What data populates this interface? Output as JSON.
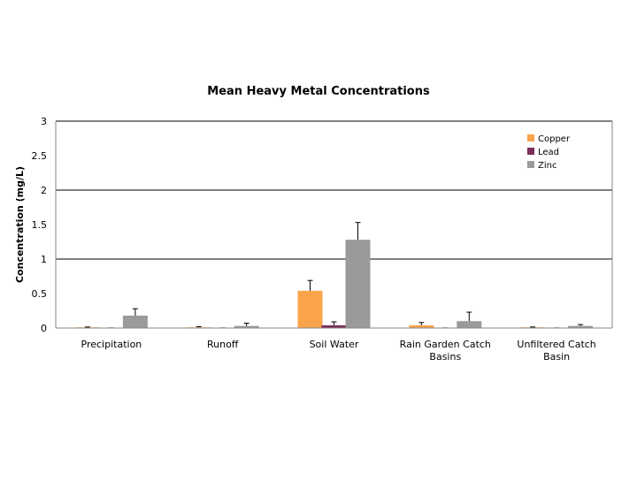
{
  "chart_data": {
    "type": "bar",
    "title": "Mean Heavy Metal Concentrations",
    "xlabel": "",
    "ylabel": "Concentration (mg/L)",
    "ylim": [
      0,
      3
    ],
    "yticks": [
      "0",
      "0.5",
      "1",
      "1.5",
      "2",
      "2.5",
      "3"
    ],
    "categories": [
      "Precipitation",
      "Runoff",
      "Soil Water",
      "Rain Garden Catch Basins",
      "Unfiltered Catch Basin"
    ],
    "category_lines": [
      [
        "Precipitation"
      ],
      [
        "Runoff"
      ],
      [
        "Soil Water"
      ],
      [
        "Rain Garden Catch",
        "Basins"
      ],
      [
        "Unfiltered Catch",
        "Basin"
      ]
    ],
    "series": [
      {
        "name": "Copper",
        "color": "#f9a44b",
        "values": [
          0.01,
          0.01,
          0.54,
          0.04,
          0.01
        ],
        "errors": [
          0.005,
          0.01,
          0.15,
          0.04,
          0.005
        ]
      },
      {
        "name": "Lead",
        "color": "#7a2d5a",
        "values": [
          0.001,
          0.001,
          0.04,
          0.001,
          0.001
        ],
        "errors": [
          0.001,
          0.001,
          0.05,
          0.001,
          0.001
        ]
      },
      {
        "name": "Zinc",
        "color": "#9a9a9a",
        "values": [
          0.18,
          0.03,
          1.28,
          0.1,
          0.03
        ],
        "errors": [
          0.1,
          0.04,
          0.25,
          0.13,
          0.02
        ]
      }
    ],
    "grid": "major gridlines at 1, 2, 3",
    "legend": "top-right"
  }
}
